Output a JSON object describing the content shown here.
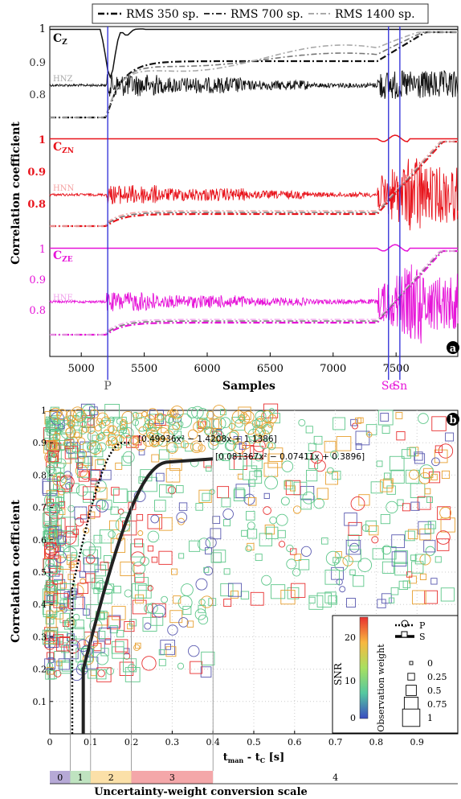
{
  "chart_data": [
    {
      "type": "line",
      "panel_label": "a",
      "legend": [
        "RMS 350 sp.",
        "RMS 700 sp.",
        "RMS 1400 sp."
      ],
      "ylabel": "Correlation coefficient",
      "xlabel": "Samples",
      "x_ticks": [
        5000,
        5500,
        6000,
        6500,
        7000,
        7500
      ],
      "xlim": [
        4750,
        7990
      ],
      "subpanels": [
        {
          "name": "C",
          "sub": "Z",
          "trace": "HNZ",
          "color": "#111111",
          "ticks": [
            "1",
            "0.9",
            "0.8"
          ]
        },
        {
          "name": "C",
          "sub": "ZN",
          "trace": "HNN",
          "color": "#e8141c",
          "ticks": [
            "1",
            "0.9",
            "0.8"
          ]
        },
        {
          "name": "C",
          "sub": "ZE",
          "trace": "HNE",
          "color": "#e614d8",
          "ticks": [
            "1",
            "0.9",
            "0.8"
          ]
        }
      ],
      "phase_markers": [
        {
          "label": "P",
          "x": 5210,
          "color": "#2a2ad8",
          "text_color": "#555555"
        },
        {
          "label": "Se",
          "x": 7440,
          "color": "#2a2ad8",
          "text_color": "#e614d8"
        },
        {
          "label": "Sn",
          "x": 7530,
          "color": "#2a2ad8",
          "text_color": "#e614d8"
        }
      ]
    },
    {
      "type": "scatter",
      "panel_label": "b",
      "xlabel_main": "t",
      "xlabel_sub1": "man",
      "xlabel_mid": " - t",
      "xlabel_sub2": "C",
      "xlabel_tail": " [s]",
      "ylabel": "Correlation coefficient",
      "xlim": [
        0,
        1.0
      ],
      "ylim": [
        0,
        1.0
      ],
      "x_ticks": [
        "0",
        "0.1",
        "0.2",
        "0.3",
        "0.4",
        "0.5",
        "0.6",
        "0.7",
        "0.8",
        "0.9"
      ],
      "y_ticks": [
        "0.1",
        "0.2",
        "0.3",
        "0.4",
        "0.5",
        "0.6",
        "0.7",
        "0.8",
        "0.9",
        "1"
      ],
      "fit_P": {
        "label": "[0.49936x² − 1.4208x + 1.1386]",
        "a": 0.49936,
        "b": -1.4208,
        "c": 1.1386
      },
      "fit_S": {
        "label": "[0.081367x² − 0.07411x + 0.3896]",
        "a": 0.081367,
        "b": -0.07411,
        "c": 0.3896
      },
      "colorbar": {
        "label": "SNR",
        "ticks": [
          "0",
          "10",
          "20"
        ]
      },
      "legend_phases": [
        "P",
        "S"
      ],
      "legend_weight_title": "Observation weight",
      "legend_weights": [
        "0",
        "0.25",
        "0.5",
        "0.75",
        "1"
      ],
      "scale_title": "Uncertainty-weight conversion scale",
      "scale_bins": [
        {
          "label": "0",
          "from": 0,
          "to": 0.05,
          "color": "#b6a9d6"
        },
        {
          "label": "1",
          "from": 0.05,
          "to": 0.1,
          "color": "#bfe3c0"
        },
        {
          "label": "2",
          "from": 0.1,
          "to": 0.2,
          "color": "#fbe0a8"
        },
        {
          "label": "3",
          "from": 0.2,
          "to": 0.4,
          "color": "#f4a7a9"
        },
        {
          "label": "4",
          "from": 0.4,
          "to": 1.0,
          "color": "#ffffff"
        }
      ]
    }
  ]
}
